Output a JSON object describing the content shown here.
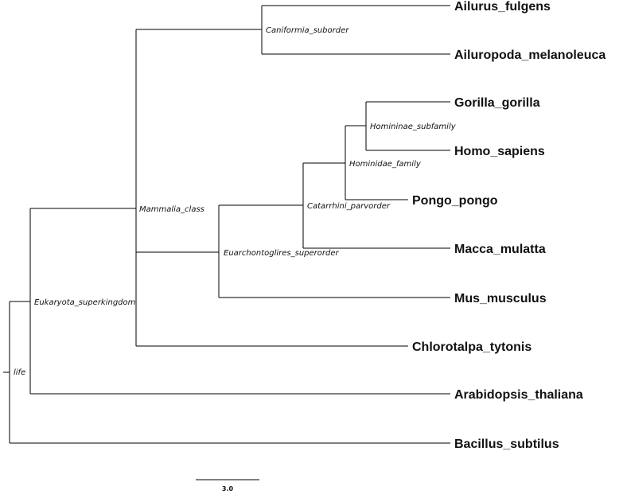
{
  "tree": {
    "leaves": {
      "ailurus": "Ailurus_fulgens",
      "ailuropoda": "Ailuropoda_melanoleuca",
      "gorilla": "Gorilla_gorilla",
      "homo": "Homo_sapiens",
      "pongo": "Pongo_pongo",
      "macca": "Macca_mulatta",
      "mus": "Mus_musculus",
      "chlorotalpa": "Chlorotalpa_tytonis",
      "arabidopsis": "Arabidopsis_thaliana",
      "bacillus": "Bacillus_subtilus"
    },
    "internal_nodes": {
      "life": "life",
      "eukaryota": "Eukaryota_superkingdom",
      "mammalia": "Mammalia_class",
      "caniformia": "Caniformia_suborder",
      "euarchontoglires": "Euarchontoglires_superorder",
      "catarrhini": "Catarrhini_parvorder",
      "hominidae": "Hominidae_family",
      "homininae": "Homininae_subfamily"
    }
  },
  "scale_bar": {
    "label": "3.0"
  }
}
